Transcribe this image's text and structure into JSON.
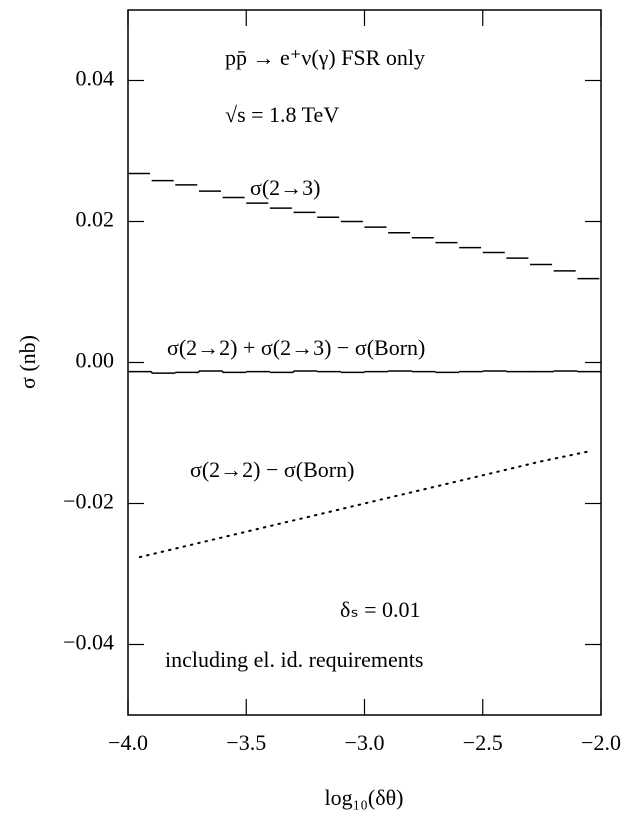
{
  "chart_data": {
    "type": "line",
    "ylabel": "σ (nb)",
    "xlabel": "log₁₀(δθ)",
    "annotations": [
      "pp̄ → e⁺ν(γ)   FSR only",
      "√s = 1.8 TeV",
      "δₛ = 0.01",
      "including el. id. requirements"
    ],
    "xlim": [
      -4.0,
      -2.0
    ],
    "xticks": [
      {
        "value": -4.0,
        "label": "−4.0"
      },
      {
        "value": -3.5,
        "label": "−3.5"
      },
      {
        "value": -3.0,
        "label": "−3.0"
      },
      {
        "value": -2.5,
        "label": "−2.5"
      },
      {
        "value": -2.0,
        "label": "−2.0"
      }
    ],
    "ylim": [
      -0.05,
      0.05
    ],
    "yticks": [
      {
        "value": -0.04,
        "label": "−0.04"
      },
      {
        "value": -0.02,
        "label": "−0.02"
      },
      {
        "value": 0.0,
        "label": "0.00"
      },
      0.02,
      0.04
    ],
    "x": [
      -3.95,
      -3.85,
      -3.75,
      -3.65,
      -3.55,
      -3.45,
      -3.35,
      -3.25,
      -3.15,
      -3.05,
      -2.95,
      -2.85,
      -2.75,
      -2.65,
      -2.55,
      -2.45,
      -2.35,
      -2.25,
      -2.15,
      -2.05
    ],
    "series": [
      {
        "name": "σ(2→3)",
        "color": "#000000",
        "style": "dashed",
        "step": true,
        "values": [
          0.0268,
          0.0258,
          0.0252,
          0.0243,
          0.0234,
          0.0226,
          0.0219,
          0.0213,
          0.0206,
          0.02,
          0.0192,
          0.0184,
          0.0177,
          0.017,
          0.0163,
          0.0156,
          0.0148,
          0.0139,
          0.013,
          0.0119
        ]
      },
      {
        "name": "σ(2→2) + σ(2→3) − σ(Born)",
        "color": "#000000",
        "style": "solid",
        "step": true,
        "values": [
          -0.0013,
          -0.0015,
          -0.0014,
          -0.0012,
          -0.0014,
          -0.0013,
          -0.0014,
          -0.0012,
          -0.0013,
          -0.0014,
          -0.0013,
          -0.0012,
          -0.0013,
          -0.0014,
          -0.0013,
          -0.0012,
          -0.0013,
          -0.0013,
          -0.0012,
          -0.0013
        ]
      },
      {
        "name": "σ(2→2) − σ(Born)",
        "color": "#000000",
        "style": "dotted",
        "step": false,
        "values": [
          -0.0276,
          -0.0268,
          -0.026,
          -0.0252,
          -0.0244,
          -0.0236,
          -0.0228,
          -0.022,
          -0.0212,
          -0.0204,
          -0.0196,
          -0.0188,
          -0.018,
          -0.0172,
          -0.0164,
          -0.0156,
          -0.0148,
          -0.014,
          -0.0133,
          -0.0126
        ]
      }
    ]
  }
}
